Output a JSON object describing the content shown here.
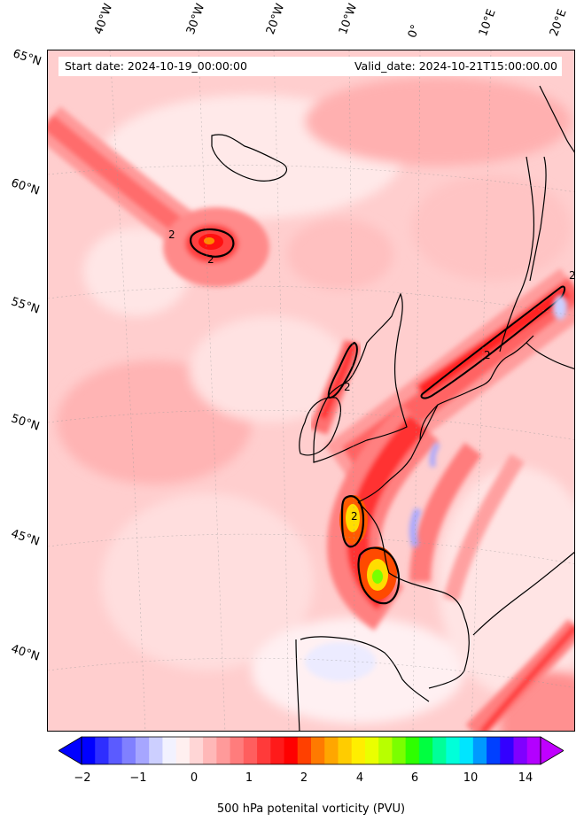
{
  "header": {
    "start_date": "Start date: 2024-10-19_00:00:00",
    "valid_date": "Valid_date: 2024-10-21T15:00:00.00"
  },
  "longitude_labels": [
    "40°W",
    "30°W",
    "20°W",
    "10°W",
    "0°",
    "10°E",
    "20°E"
  ],
  "latitude_labels": [
    "65°N",
    "60°N",
    "55°N",
    "50°N",
    "45°N",
    "40°N"
  ],
  "contour_labels": [
    "2",
    "2",
    "2",
    "2",
    "2",
    "2"
  ],
  "colorbar": {
    "title": "500 hPa potenital vorticity (PVU)",
    "ticks": [
      "−2",
      "−1",
      "0",
      "1",
      "2",
      "4",
      "6",
      "10",
      "14"
    ],
    "colors": [
      "#0000ff",
      "#2e2eff",
      "#5b5bff",
      "#8080ff",
      "#a6a6ff",
      "#cccfff",
      "#f2f2ff",
      "#fff0f0",
      "#ffd6d6",
      "#ffb8b8",
      "#ff9a9a",
      "#ff7c7c",
      "#ff5e5e",
      "#ff3a3a",
      "#ff1a1a",
      "#ff0000",
      "#ff4000",
      "#ff7a00",
      "#ffa600",
      "#ffcc00",
      "#ffee00",
      "#eaff00",
      "#b8ff00",
      "#7aff00",
      "#2eff00",
      "#00ff40",
      "#00ff99",
      "#00ffd9",
      "#00e5ff",
      "#0099ff",
      "#0040ff",
      "#3300ff",
      "#8000ff",
      "#b300ff"
    ]
  }
}
